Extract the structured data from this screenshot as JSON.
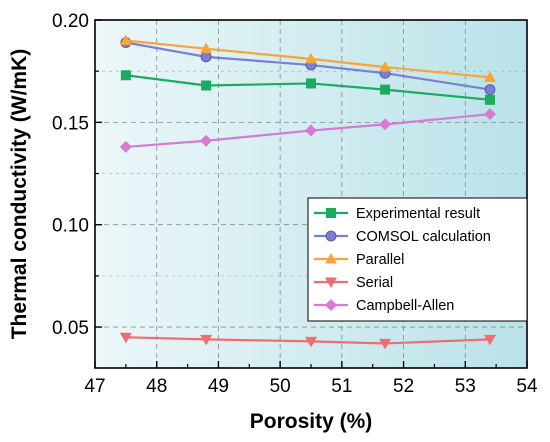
{
  "chart_data": {
    "type": "line",
    "title": "",
    "xlabel": "Porosity (%)",
    "ylabel": "Thermal conductivity (W/mK)",
    "xlim": [
      47,
      54
    ],
    "ylim": [
      0.03,
      0.2
    ],
    "xticks": [
      47,
      48,
      49,
      50,
      51,
      52,
      53,
      54
    ],
    "xtick_labels": [
      "47",
      "48",
      "49",
      "50",
      "51",
      "52",
      "53",
      "54"
    ],
    "yticks": [
      0.05,
      0.1,
      0.15,
      0.2
    ],
    "ytick_labels": [
      "0.05",
      "0.10",
      "0.15",
      "0.20"
    ],
    "grid": true,
    "legend_position": "center-right",
    "x": [
      47.5,
      48.8,
      50.5,
      51.7,
      53.4
    ],
    "series": [
      {
        "name": "Experimental result",
        "color": "#1aab5e",
        "marker": "square",
        "values": [
          0.173,
          0.168,
          0.169,
          0.166,
          0.161
        ]
      },
      {
        "name": "COMSOL calculation",
        "color": "#7a7fd2",
        "marker": "circle",
        "values": [
          0.189,
          0.182,
          0.178,
          0.174,
          0.166
        ]
      },
      {
        "name": "Parallel",
        "color": "#f8a43a",
        "marker": "triangle-up",
        "values": [
          0.19,
          0.186,
          0.181,
          0.177,
          0.172
        ]
      },
      {
        "name": "Serial",
        "color": "#f06c70",
        "marker": "triangle-down",
        "values": [
          0.045,
          0.044,
          0.043,
          0.042,
          0.044
        ]
      },
      {
        "name": "Campbell-Allen",
        "color": "#d67ad6",
        "marker": "diamond",
        "values": [
          0.138,
          0.141,
          0.146,
          0.149,
          0.154
        ]
      }
    ]
  }
}
